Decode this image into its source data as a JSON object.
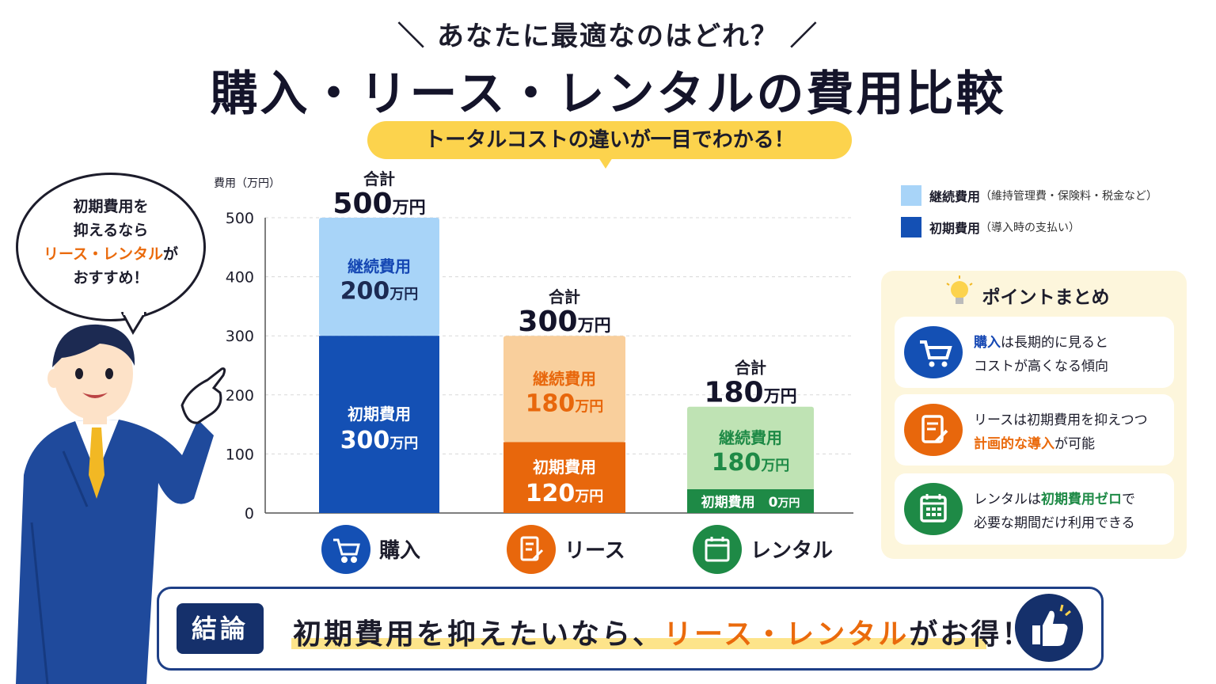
{
  "header": {
    "subtitle": "＼ あなたに最適なのはどれ？ ／",
    "title": "購入・リース・レンタルの費用比較",
    "pill": "トータルコストの違いが一目でわかる！"
  },
  "bubble": {
    "line1": "初期費用を",
    "line2": "抑えるなら",
    "line3_highlight": "リース・レンタル",
    "line3_rest": "が",
    "line4": "おすすめ！"
  },
  "legend": {
    "continuing_main": "継続費用",
    "continuing_sub": "（維持管理費・保険料・税金など）",
    "initial_main": "初期費用",
    "initial_sub": "（導入時の支払い）"
  },
  "points": {
    "title": "ポイントまとめ",
    "item1_highlight": "購入",
    "item1_rest1": "は長期的に見ると",
    "item1_rest2": "コストが高くなる傾向",
    "item2_line1": "リースは初期費用を抑えつつ",
    "item2_highlight": "計画的な導入",
    "item2_rest": "が可能",
    "item3_a": "レンタルは",
    "item3_highlight": "初期費用ゼロ",
    "item3_b": "で",
    "item3_line2": "必要な期間だけ利用できる"
  },
  "conclusion": {
    "badge": "結論",
    "text_before": "初期費用を抑えたいなら、",
    "text_highlight": "リース・レンタル",
    "text_after": "がお得！"
  },
  "colors": {
    "purchase_initial": "#1450b4",
    "purchase_continuing": "#a8d4f8",
    "lease_initial": "#e8670c",
    "lease_continuing": "#f9cf9c",
    "rental_initial": "#1e8a46",
    "rental_continuing": "#bfe3b4"
  },
  "chart_data": {
    "type": "bar",
    "stacked": true,
    "ylabel": "費用（万円）",
    "ylim": [
      0,
      500
    ],
    "yticks": [
      "0",
      "100",
      "200",
      "300",
      "400",
      "500"
    ],
    "categories": [
      "購入",
      "リース",
      "レンタル"
    ],
    "total_label": "合計",
    "unit": "万円",
    "totals": [
      500,
      300,
      180
    ],
    "series": [
      {
        "name": "初期費用",
        "values": [
          300,
          120,
          0
        ]
      },
      {
        "name": "継続費用",
        "values": [
          200,
          180,
          180
        ]
      }
    ]
  }
}
